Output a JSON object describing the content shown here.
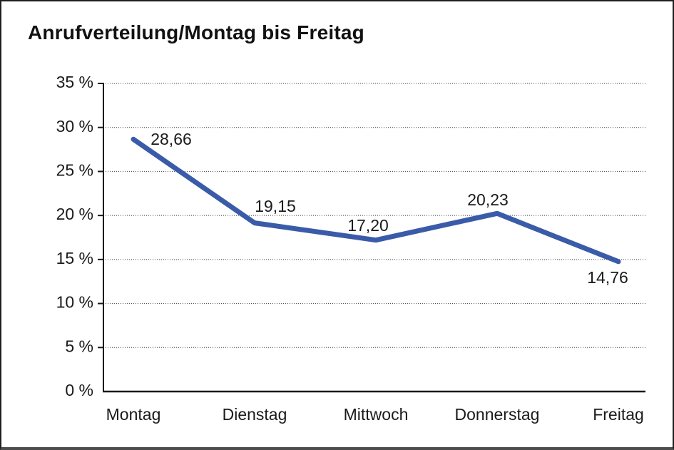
{
  "title": "Anrufverteilung/Montag bis Freitag",
  "colors": {
    "line": "#3A5BA8",
    "grid": "#3c3c3c",
    "axis": "#1a1a1a",
    "text": "#1a1a1a",
    "frame": "#1f1f1f",
    "background": "#ffffff"
  },
  "chart_data": {
    "type": "line",
    "title": "Anrufverteilung/Montag bis Freitag",
    "categories": [
      "Montag",
      "Dienstag",
      "Mittwoch",
      "Donnerstag",
      "Freitag"
    ],
    "values": [
      28.66,
      19.15,
      17.2,
      20.23,
      14.76
    ],
    "value_labels": [
      "28,66",
      "19,15",
      "17,20",
      "20,23",
      "14,76"
    ],
    "y_tick_labels": [
      "0 %",
      "5 %",
      "10 %",
      "15 %",
      "20 %",
      "25 %",
      "30 %",
      "35 %"
    ],
    "ylim": [
      0,
      35
    ],
    "y_step": 5,
    "xlabel": "",
    "ylabel": "",
    "grid": "horizontal-dotted",
    "legend": "none"
  }
}
